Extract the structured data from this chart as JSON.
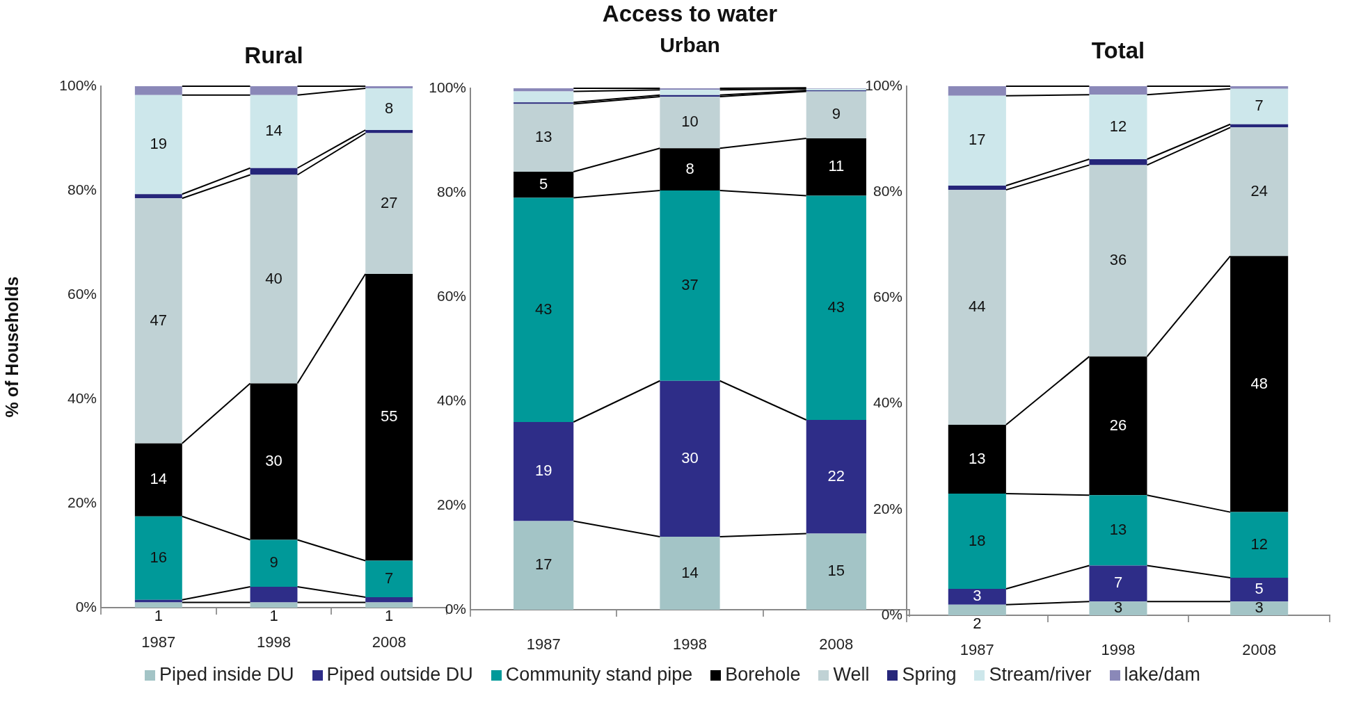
{
  "chart_data": [
    {
      "type": "bar",
      "stacked": true,
      "title": "Rural",
      "ylabel": "% of Households",
      "categories": [
        "1987",
        "1998",
        "2008"
      ],
      "ylim": [
        0,
        100
      ],
      "yticks": [
        {
          "value": 0,
          "label": "0%"
        },
        {
          "value": 20,
          "label": "20%"
        },
        {
          "value": 40,
          "label": "40%"
        },
        {
          "value": 60,
          "label": "60%"
        },
        {
          "value": 80,
          "label": "80%"
        },
        {
          "value": 100,
          "label": "100%"
        }
      ],
      "grid": false,
      "series": [
        {
          "color": "#a3c4c6",
          "values": [
            1,
            1,
            1
          ],
          "value_labels": [
            "1",
            "1",
            "1"
          ]
        },
        {
          "color": "#2e2d88",
          "values": [
            0.5,
            3,
            1
          ],
          "value_labels": [
            null,
            null,
            null
          ]
        },
        {
          "color": "#009999",
          "values": [
            16,
            9,
            7
          ],
          "value_labels": [
            "16",
            "9",
            "7"
          ]
        },
        {
          "color": "#000000",
          "values": [
            14,
            30,
            55
          ],
          "value_labels": [
            "14",
            "30",
            "55"
          ]
        },
        {
          "color": "#c0d2d5",
          "values": [
            47,
            40,
            27
          ],
          "value_labels": [
            "47",
            "40",
            "27"
          ]
        },
        {
          "color": "#26267a",
          "values": [
            0.8,
            1.3,
            0.6
          ],
          "value_labels": [
            null,
            null,
            null
          ]
        },
        {
          "color": "#cde7eb",
          "values": [
            19,
            14,
            8
          ],
          "value_labels": [
            "19",
            "14",
            "8"
          ]
        },
        {
          "color": "#8a88b8",
          "values": [
            1.7,
            1.7,
            0.4
          ],
          "value_labels": [
            null,
            null,
            null
          ]
        }
      ]
    },
    {
      "type": "bar",
      "stacked": true,
      "title": "Access to water",
      "subtitle": "Urban",
      "categories": [
        "1987",
        "1998",
        "2008"
      ],
      "ylim": [
        0,
        100
      ],
      "yticks": [
        {
          "value": 0,
          "label": "0%"
        },
        {
          "value": 20,
          "label": "20%"
        },
        {
          "value": 40,
          "label": "40%"
        },
        {
          "value": 60,
          "label": "60%"
        },
        {
          "value": 80,
          "label": "80%"
        },
        {
          "value": 100,
          "label": "100%"
        }
      ],
      "grid": false,
      "legend": "bottom",
      "series": [
        {
          "name": "Piped inside DU",
          "color": "#a3c4c6",
          "values": [
            17,
            14,
            14.6
          ],
          "value_labels": [
            "17",
            "14",
            "15"
          ]
        },
        {
          "name": "Piped outside DU",
          "color": "#2e2d88",
          "values": [
            19,
            29.9,
            21.8
          ],
          "value_labels": [
            "19",
            "30",
            "22"
          ]
        },
        {
          "name": "Community stand pipe",
          "color": "#009999",
          "values": [
            43,
            36.5,
            43
          ],
          "value_labels": [
            "43",
            "37",
            "43"
          ]
        },
        {
          "name": "Borehole",
          "color": "#000000",
          "values": [
            5,
            8.1,
            11
          ],
          "value_labels": [
            "5",
            "8",
            "11"
          ]
        },
        {
          "name": "Well",
          "color": "#c0d2d5",
          "values": [
            13,
            9.9,
            9
          ],
          "value_labels": [
            "13",
            "10",
            "9"
          ]
        },
        {
          "name": "Spring",
          "color": "#26267a",
          "values": [
            0.3,
            0.3,
            0.2
          ],
          "value_labels": [
            null,
            null,
            null
          ]
        },
        {
          "name": "Stream/river",
          "color": "#cde7eb",
          "values": [
            2.1,
            1,
            0.3
          ],
          "value_labels": [
            null,
            null,
            null
          ]
        },
        {
          "name": "lake/dam",
          "color": "#8a88b8",
          "values": [
            0.6,
            0.3,
            0.2
          ],
          "value_labels": [
            null,
            null,
            null
          ]
        }
      ]
    },
    {
      "type": "bar",
      "stacked": true,
      "title": "Total",
      "categories": [
        "1987",
        "1998",
        "2008"
      ],
      "ylim": [
        0,
        100
      ],
      "yticks": [
        {
          "value": 0,
          "label": "0%"
        },
        {
          "value": 20,
          "label": "20%"
        },
        {
          "value": 40,
          "label": "40%"
        },
        {
          "value": 60,
          "label": "60%"
        },
        {
          "value": 80,
          "label": "80%"
        },
        {
          "value": 100,
          "label": "100%"
        }
      ],
      "grid": false,
      "series": [
        {
          "color": "#a3c4c6",
          "values": [
            2,
            2.6,
            2.6
          ],
          "value_labels": [
            "2",
            "3",
            "3"
          ]
        },
        {
          "color": "#2e2d88",
          "values": [
            3,
            6.8,
            4.5
          ],
          "value_labels": [
            "3",
            "7",
            "5"
          ]
        },
        {
          "color": "#009999",
          "values": [
            18,
            13.3,
            12.4
          ],
          "value_labels": [
            "18",
            "13",
            "12"
          ]
        },
        {
          "color": "#000000",
          "values": [
            13,
            26.2,
            48.4
          ],
          "value_labels": [
            "13",
            "26",
            "48"
          ]
        },
        {
          "color": "#c0d2d5",
          "values": [
            44.4,
            36.2,
            24.3
          ],
          "value_labels": [
            "44",
            "36",
            "24"
          ]
        },
        {
          "color": "#26267a",
          "values": [
            0.8,
            1.1,
            0.6
          ],
          "value_labels": [
            null,
            null,
            null
          ]
        },
        {
          "color": "#cde7eb",
          "values": [
            17,
            12.2,
            6.7
          ],
          "value_labels": [
            "17",
            "12",
            "7"
          ]
        },
        {
          "color": "#8a88b8",
          "values": [
            1.8,
            1.6,
            0.5
          ],
          "value_labels": [
            null,
            null,
            null
          ]
        }
      ]
    }
  ]
}
